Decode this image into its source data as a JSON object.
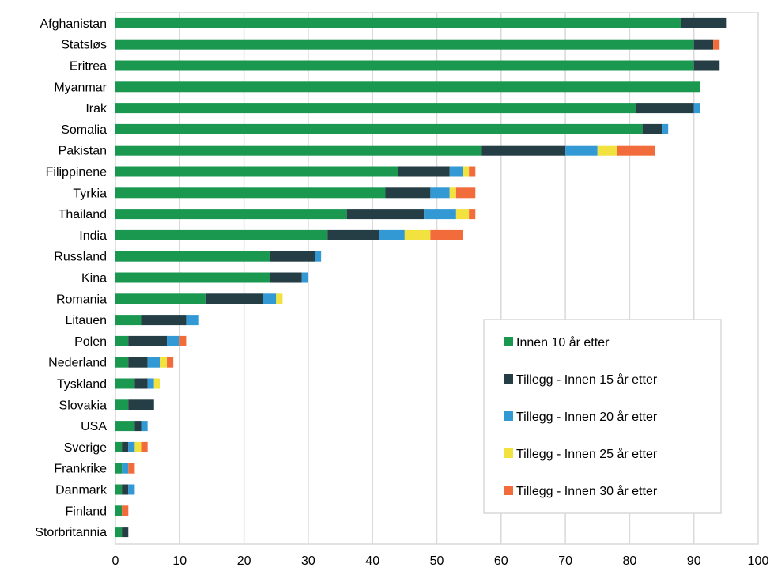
{
  "chart_data": {
    "type": "bar",
    "orientation": "horizontal",
    "stacked": true,
    "categories": [
      "Afghanistan",
      "Statsløs",
      "Eritrea",
      "Myanmar",
      "Irak",
      "Somalia",
      "Pakistan",
      "Filippinene",
      "Tyrkia",
      "Thailand",
      "India",
      "Russland",
      "Kina",
      "Romania",
      "Litauen",
      "Polen",
      "Nederland",
      "Tyskland",
      "Slovakia",
      "USA",
      "Sverige",
      "Frankrike",
      "Danmark",
      "Finland",
      "Storbritannia"
    ],
    "series": [
      {
        "name": "Innen 10 år etter",
        "color": "#1a9850",
        "values": [
          88,
          90,
          90,
          91,
          81,
          82,
          57,
          44,
          42,
          36,
          33,
          24,
          24,
          14,
          4,
          2,
          2,
          3,
          2,
          3,
          1,
          1,
          1,
          1,
          1
        ]
      },
      {
        "name": "Tillegg - Innen 15 år etter",
        "color": "#253d44",
        "values": [
          7,
          3,
          4,
          0,
          9,
          3,
          13,
          8,
          7,
          12,
          8,
          7,
          5,
          9,
          7,
          6,
          3,
          2,
          4,
          1,
          1,
          0,
          1,
          0,
          1
        ]
      },
      {
        "name": "Tillegg - Innen 20 år etter",
        "color": "#3399d4",
        "values": [
          0,
          0,
          0,
          0,
          1,
          1,
          5,
          2,
          3,
          5,
          4,
          1,
          1,
          2,
          2,
          2,
          2,
          1,
          0,
          1,
          1,
          1,
          1,
          0,
          0
        ]
      },
      {
        "name": "Tillegg - Innen 25 år etter",
        "color": "#f2e240",
        "values": [
          0,
          0,
          0,
          0,
          0,
          0,
          3,
          1,
          1,
          2,
          4,
          0,
          0,
          1,
          0,
          0,
          1,
          1,
          0,
          0,
          1,
          0,
          0,
          0,
          0
        ]
      },
      {
        "name": "Tillegg - Innen 30 år etter",
        "color": "#f26c3b",
        "values": [
          0,
          1,
          0,
          0,
          0,
          0,
          6,
          1,
          3,
          1,
          5,
          0,
          0,
          0,
          0,
          1,
          1,
          0,
          0,
          0,
          1,
          1,
          0,
          1,
          0
        ]
      }
    ],
    "xlim": [
      0,
      100
    ],
    "xticks": [
      0,
      10,
      20,
      30,
      40,
      50,
      60,
      70,
      80,
      90,
      100
    ],
    "title": "",
    "xlabel": "",
    "ylabel": "",
    "grid": "vertical",
    "legend_position": "bottom-right"
  }
}
